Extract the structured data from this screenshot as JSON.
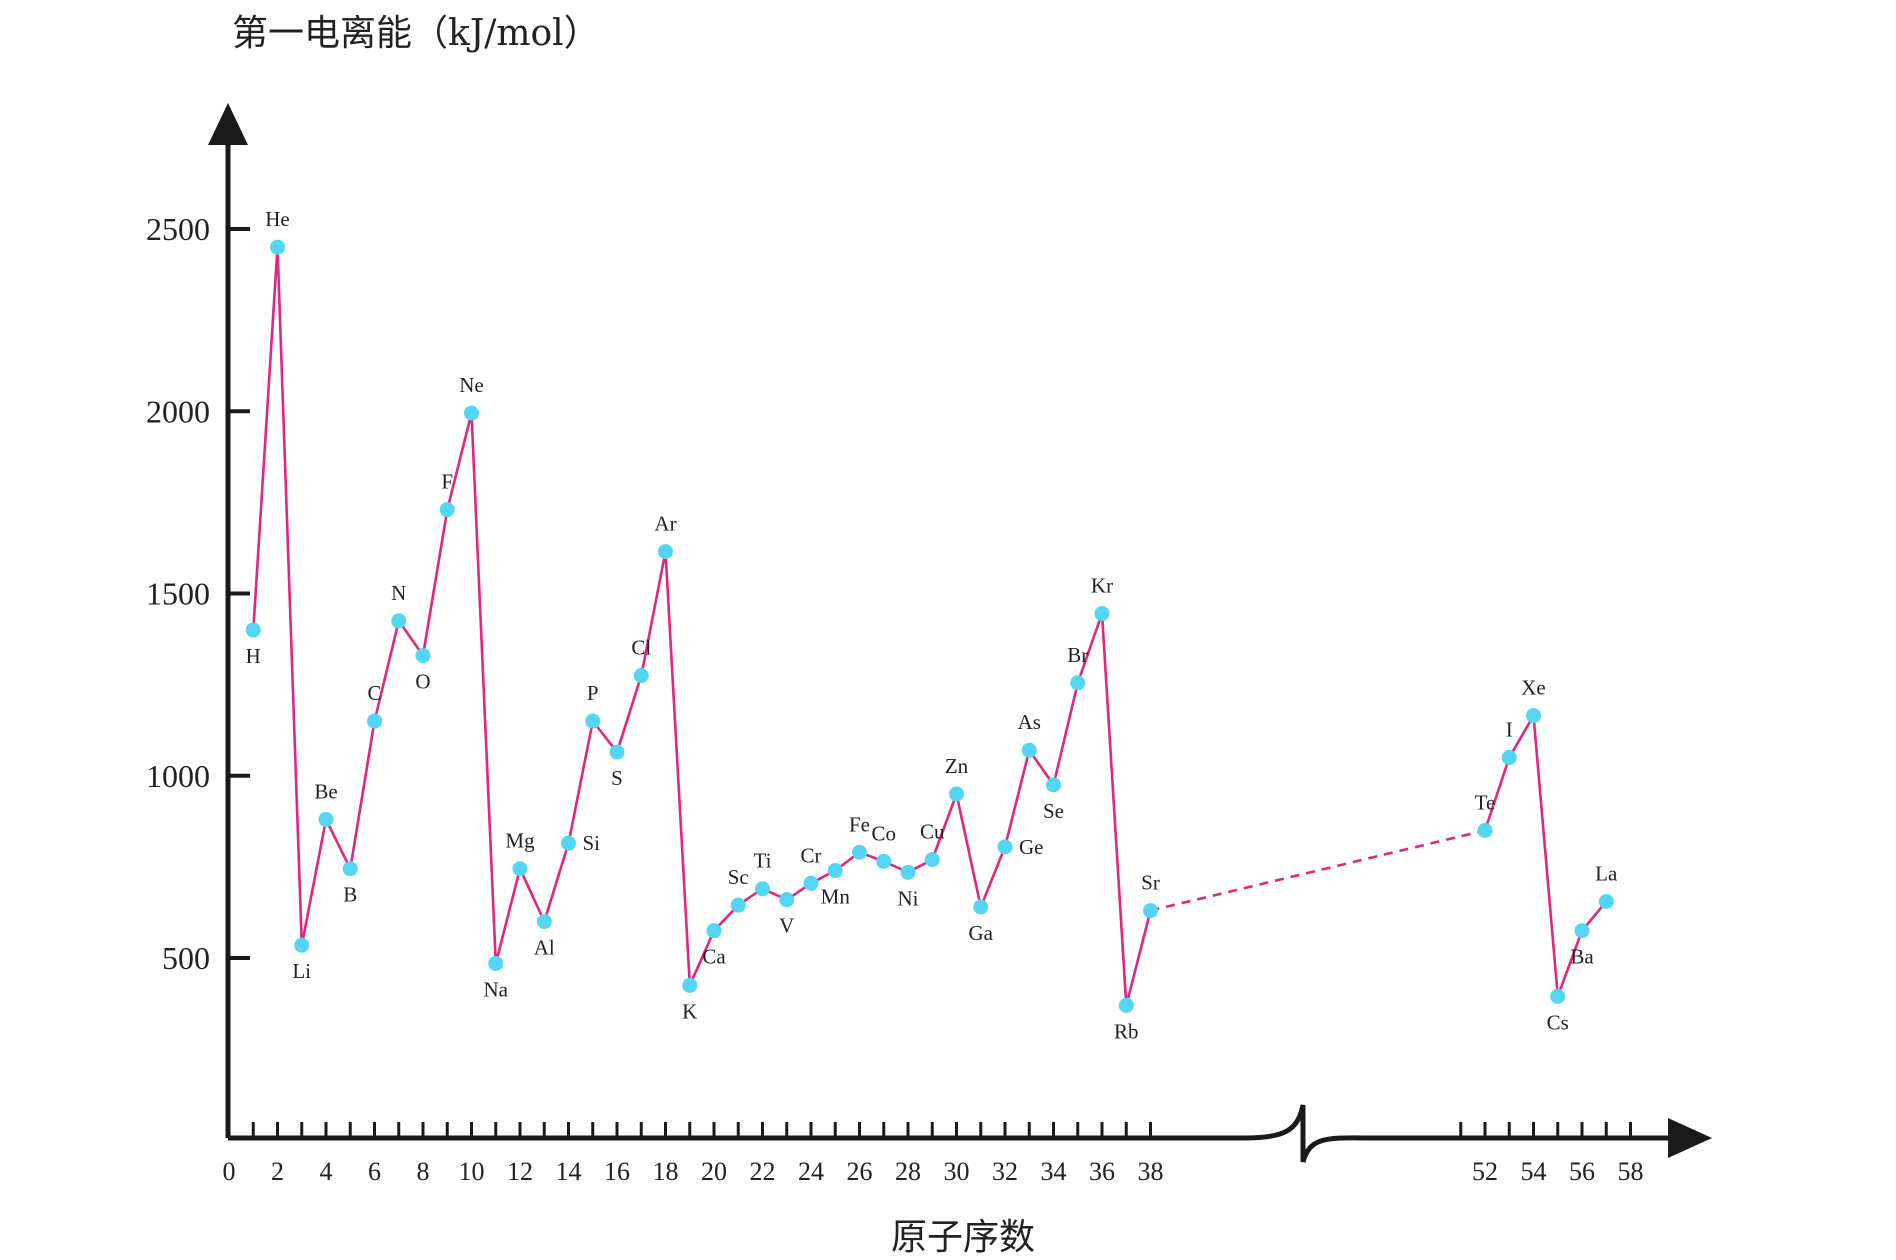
{
  "chart_data": {
    "type": "line",
    "ylabel": "第一电离能（kJ/mol）",
    "xlabel": "原子序数",
    "yticks": [
      500,
      1000,
      1500,
      2000,
      2500
    ],
    "xticks_left": [
      0,
      2,
      4,
      6,
      8,
      10,
      12,
      14,
      16,
      18,
      20,
      22,
      24,
      26,
      28,
      30,
      32,
      34,
      36,
      38
    ],
    "xticks_right": [
      52,
      54,
      56,
      58
    ],
    "axis_break": "38-52",
    "line_color": "#e0267f",
    "marker_color": "#52d6f4",
    "series": [
      {
        "x": 1,
        "y": 1400,
        "label": "H",
        "pos": "below"
      },
      {
        "x": 2,
        "y": 2450,
        "label": "He",
        "pos": "above"
      },
      {
        "x": 3,
        "y": 535,
        "label": "Li",
        "pos": "below"
      },
      {
        "x": 4,
        "y": 880,
        "label": "Be",
        "pos": "above"
      },
      {
        "x": 5,
        "y": 745,
        "label": "B",
        "pos": "below"
      },
      {
        "x": 6,
        "y": 1150,
        "label": "C",
        "pos": "above"
      },
      {
        "x": 7,
        "y": 1425,
        "label": "N",
        "pos": "above"
      },
      {
        "x": 8,
        "y": 1330,
        "label": "O",
        "pos": "below"
      },
      {
        "x": 9,
        "y": 1730,
        "label": "F",
        "pos": "above"
      },
      {
        "x": 10,
        "y": 1995,
        "label": "Ne",
        "pos": "above"
      },
      {
        "x": 11,
        "y": 485,
        "label": "Na",
        "pos": "below"
      },
      {
        "x": 12,
        "y": 745,
        "label": "Mg",
        "pos": "above"
      },
      {
        "x": 13,
        "y": 600,
        "label": "Al",
        "pos": "below"
      },
      {
        "x": 14,
        "y": 815,
        "label": "Si",
        "pos": "right"
      },
      {
        "x": 15,
        "y": 1150,
        "label": "P",
        "pos": "above"
      },
      {
        "x": 16,
        "y": 1065,
        "label": "S",
        "pos": "below"
      },
      {
        "x": 17,
        "y": 1275,
        "label": "Cl",
        "pos": "above"
      },
      {
        "x": 18,
        "y": 1615,
        "label": "Ar",
        "pos": "above"
      },
      {
        "x": 19,
        "y": 425,
        "label": "K",
        "pos": "below"
      },
      {
        "x": 20,
        "y": 575,
        "label": "Ca",
        "pos": "below"
      },
      {
        "x": 21,
        "y": 645,
        "label": "Sc",
        "pos": "above"
      },
      {
        "x": 22,
        "y": 690,
        "label": "Ti",
        "pos": "above"
      },
      {
        "x": 23,
        "y": 660,
        "label": "V",
        "pos": "below"
      },
      {
        "x": 24,
        "y": 705,
        "label": "Cr",
        "pos": "above"
      },
      {
        "x": 25,
        "y": 740,
        "label": "Mn",
        "pos": "below"
      },
      {
        "x": 26,
        "y": 790,
        "label": "Fe",
        "pos": "above"
      },
      {
        "x": 27,
        "y": 765,
        "label": "Co",
        "pos": "above"
      },
      {
        "x": 28,
        "y": 735,
        "label": "Ni",
        "pos": "below"
      },
      {
        "x": 29,
        "y": 770,
        "label": "Cu",
        "pos": "above"
      },
      {
        "x": 30,
        "y": 950,
        "label": "Zn",
        "pos": "above"
      },
      {
        "x": 31,
        "y": 640,
        "label": "Ga",
        "pos": "below"
      },
      {
        "x": 32,
        "y": 805,
        "label": "Ge",
        "pos": "right"
      },
      {
        "x": 33,
        "y": 1070,
        "label": "As",
        "pos": "above"
      },
      {
        "x": 34,
        "y": 975,
        "label": "Se",
        "pos": "below"
      },
      {
        "x": 35,
        "y": 1255,
        "label": "Br",
        "pos": "above"
      },
      {
        "x": 36,
        "y": 1445,
        "label": "Kr",
        "pos": "above"
      },
      {
        "x": 37,
        "y": 370,
        "label": "Rb",
        "pos": "below"
      },
      {
        "x": 38,
        "y": 630,
        "label": "Sr",
        "pos": "above"
      },
      {
        "x": 52,
        "y": 850,
        "label": "Te",
        "pos": "above"
      },
      {
        "x": 53,
        "y": 1050,
        "label": "I",
        "pos": "above"
      },
      {
        "x": 54,
        "y": 1165,
        "label": "Xe",
        "pos": "above"
      },
      {
        "x": 55,
        "y": 395,
        "label": "Cs",
        "pos": "below"
      },
      {
        "x": 56,
        "y": 575,
        "label": "Ba",
        "pos": "below"
      },
      {
        "x": 57,
        "y": 655,
        "label": "La",
        "pos": "above"
      }
    ]
  }
}
